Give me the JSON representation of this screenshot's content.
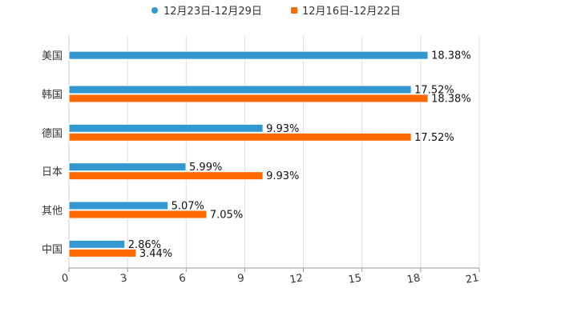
{
  "chart_data": {
    "type": "bar",
    "orientation": "horizontal",
    "title": "",
    "xlabel": "",
    "ylabel": "",
    "categories": [
      "美国",
      "韩国",
      "德国",
      "日本",
      "其他",
      "中国"
    ],
    "series": [
      {
        "name": "12月23日-12月29日",
        "color": "#3498d0",
        "values": [
          18.38,
          17.52,
          9.93,
          5.99,
          5.07,
          2.86
        ],
        "labels": [
          "18.38%",
          "17.52%",
          "9.93%",
          "5.99%",
          "5.07%",
          "2.86%"
        ]
      },
      {
        "name": "12月16日-12月22日",
        "color": "#ff6a00",
        "values": [
          null,
          18.38,
          17.52,
          9.93,
          7.05,
          3.44
        ],
        "labels": [
          "",
          "18.38%",
          "17.52%",
          "9.93%",
          "7.05%",
          "3.44%"
        ]
      }
    ],
    "xlim": [
      0,
      21
    ],
    "xticks": [
      0,
      3,
      6,
      9,
      12,
      15,
      18,
      21
    ],
    "xtick_labels": [
      "0",
      "3",
      "6",
      "9",
      "12",
      "15",
      "18",
      "21"
    ],
    "grid": true,
    "legend_position": "top-center"
  }
}
